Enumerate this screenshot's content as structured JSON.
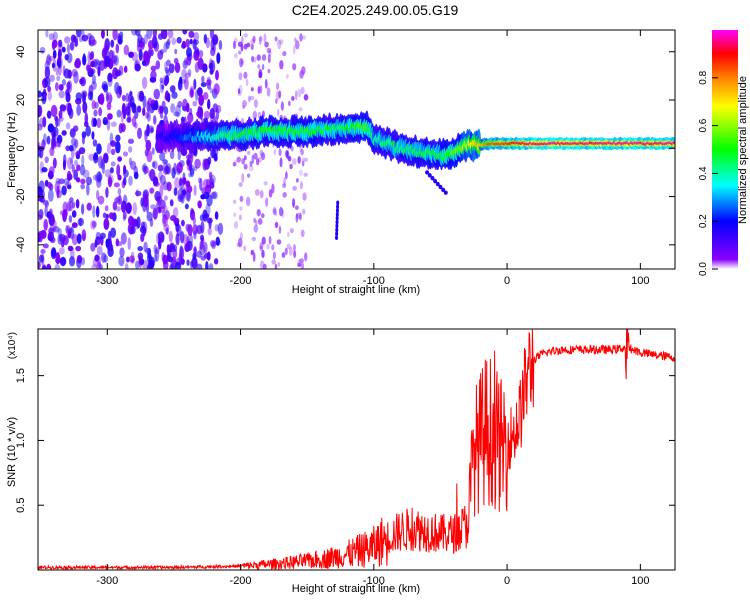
{
  "title": "C2E4.2025.249.00.05.G19",
  "chart_data": [
    {
      "type": "heatmap",
      "title": "C2E4.2025.249.00.05.G19",
      "xlabel": "Height of straight line (km)",
      "ylabel": "Frequency (Hz)",
      "xlim": [
        -352,
        126
      ],
      "ylim": [
        -50,
        49
      ],
      "xticks": [
        -300,
        -200,
        -100,
        0,
        100
      ],
      "yticks": [
        -40,
        -20,
        0,
        20,
        40
      ],
      "colorbar": {
        "label": "Normalized spectral amplitude",
        "range": [
          0,
          1
        ],
        "ticks": [
          0.0,
          0.2,
          0.4,
          0.6,
          0.8
        ],
        "colormap": [
          "#ffffff",
          "#8b00ff",
          "#0000ff",
          "#00ffff",
          "#00ff00",
          "#ffff00",
          "#ff8000",
          "#ff0000",
          "#ff00ff"
        ]
      },
      "ridge": [
        {
          "x": -260,
          "f": 5,
          "a": 0.15
        },
        {
          "x": -210,
          "f": 5,
          "a": 0.45
        },
        {
          "x": -180,
          "f": 7,
          "a": 0.5
        },
        {
          "x": -150,
          "f": 7,
          "a": 0.5
        },
        {
          "x": -125,
          "f": 8,
          "a": 0.45
        },
        {
          "x": -105,
          "f": 9,
          "a": 0.55
        },
        {
          "x": -100,
          "f": 4,
          "a": 0.4
        },
        {
          "x": -80,
          "f": 0,
          "a": 0.45
        },
        {
          "x": -60,
          "f": -2,
          "a": 0.45
        },
        {
          "x": -45,
          "f": -3,
          "a": 0.5
        },
        {
          "x": -30,
          "f": 1,
          "a": 0.65
        },
        {
          "x": -10,
          "f": 2,
          "a": 0.85
        },
        {
          "x": 20,
          "f": 2,
          "a": 0.95
        },
        {
          "x": 60,
          "f": 2,
          "a": 0.95
        },
        {
          "x": 90,
          "f": 2,
          "a": 0.95
        },
        {
          "x": 126,
          "f": 2,
          "a": 0.95
        }
      ]
    },
    {
      "type": "line",
      "xlabel": "Height of straight line (km)",
      "ylabel": "SNR (10 * v/v)",
      "multiplier": "(x10⁴)",
      "xlim": [
        -352,
        126
      ],
      "ylim": [
        0,
        1.86
      ],
      "xticks": [
        -300,
        -200,
        -100,
        0,
        100
      ],
      "yticks": [
        0.5,
        1.0,
        1.5
      ],
      "color": "#ff0000",
      "series": [
        {
          "name": "SNR",
          "x": [
            -352,
            -300,
            -250,
            -200,
            -170,
            -140,
            -120,
            -100,
            -90,
            -80,
            -70,
            -60,
            -50,
            -40,
            -30,
            -25,
            -20,
            -15,
            -10,
            -5,
            0,
            5,
            10,
            15,
            20,
            25,
            30,
            40,
            60,
            80,
            90,
            100,
            110,
            126
          ],
          "y": [
            0.02,
            0.02,
            0.02,
            0.03,
            0.05,
            0.08,
            0.12,
            0.18,
            0.25,
            0.3,
            0.32,
            0.3,
            0.28,
            0.28,
            0.35,
            0.9,
            1.0,
            1.1,
            1.05,
            0.95,
            1.0,
            1.05,
            1.2,
            1.5,
            1.62,
            1.66,
            1.68,
            1.7,
            1.7,
            1.7,
            1.72,
            1.68,
            1.66,
            1.64
          ]
        }
      ]
    }
  ]
}
